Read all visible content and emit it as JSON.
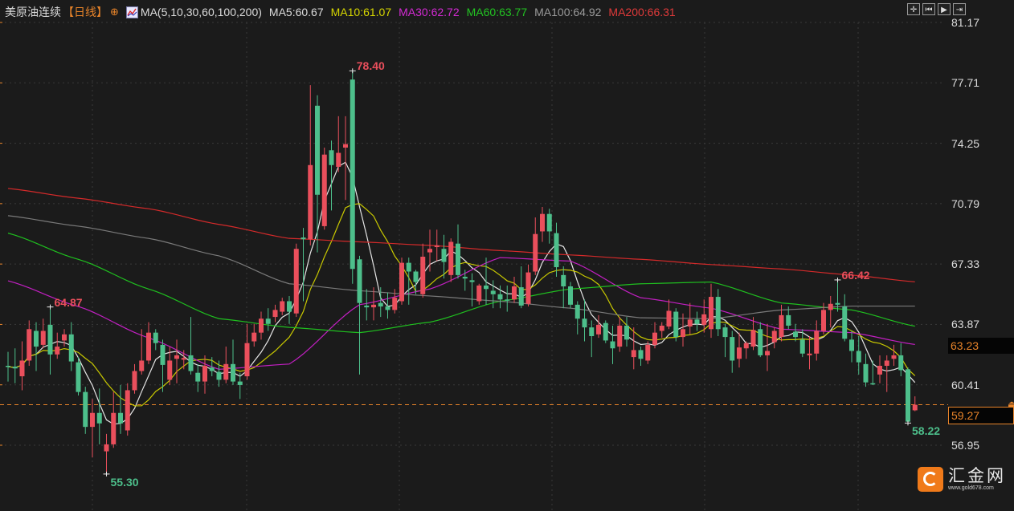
{
  "header": {
    "title": "美原油连续",
    "period": "【日线】",
    "ma_params": "MA(5,10,30,60,100,200)",
    "ma_values": [
      {
        "label": "MA5:60.67",
        "color": "#dcdcdc"
      },
      {
        "label": "MA10:61.07",
        "color": "#d6d600"
      },
      {
        "label": "MA30:62.72",
        "color": "#d42ad4"
      },
      {
        "label": "MA60:63.77",
        "color": "#22c322"
      },
      {
        "label": "MA100:64.92",
        "color": "#9a9a9a"
      },
      {
        "label": "MA200:66.31",
        "color": "#e03a3a"
      }
    ]
  },
  "toolbar": [
    {
      "name": "crosshair-icon",
      "glyph": "✛"
    },
    {
      "name": "step-back-icon",
      "glyph": "⏮"
    },
    {
      "name": "play-icon",
      "glyph": "▶"
    },
    {
      "name": "jump-end-icon",
      "glyph": "⇥"
    }
  ],
  "logo": {
    "name": "汇金网",
    "url": "www.gold678.com"
  },
  "price_tags": {
    "prev": "63.23",
    "current": "59.27"
  },
  "colors": {
    "up": "#ea4f5c",
    "down": "#4dbf8b",
    "background": "#1b1b1b",
    "current_line": "#e8842a"
  },
  "chart_data": {
    "type": "candlestick",
    "title": "美原油连续",
    "ylim": [
      56.95,
      81.17
    ],
    "yticks": [
      "81.17",
      "77.71",
      "74.25",
      "70.79",
      "67.33",
      "63.87",
      "60.41",
      "56.95"
    ],
    "grid": true,
    "current_price": 59.27,
    "reference_price": 63.23,
    "candles_ohlc": [
      [
        61.5,
        62.3,
        60.6,
        61.45
      ],
      [
        61.45,
        62.5,
        60.5,
        61.35
      ],
      [
        60.9,
        62.9,
        60.1,
        61.8
      ],
      [
        61.8,
        64.1,
        61.5,
        63.6
      ],
      [
        63.5,
        64.0,
        61.2,
        62.6
      ],
      [
        62.7,
        64.2,
        62.5,
        63.5
      ],
      [
        63.85,
        64.87,
        61.0,
        62.15
      ],
      [
        62.15,
        63.4,
        61.9,
        62.6
      ],
      [
        62.95,
        63.6,
        62.6,
        63.3
      ],
      [
        63.3,
        64.0,
        61.2,
        61.75
      ],
      [
        61.7,
        62.0,
        59.8,
        60.0
      ],
      [
        60.0,
        60.3,
        57.6,
        58.0
      ],
      [
        58.0,
        59.6,
        56.25,
        58.8
      ],
      [
        58.8,
        60.2,
        57.0,
        58.2
      ],
      [
        56.6,
        57.6,
        55.3,
        57.0
      ],
      [
        57.0,
        60.0,
        56.8,
        58.8
      ],
      [
        58.8,
        60.4,
        57.6,
        58.2
      ],
      [
        57.8,
        60.5,
        57.5,
        60.1
      ],
      [
        60.1,
        61.6,
        59.9,
        61.2
      ],
      [
        61.2,
        63.6,
        61.0,
        61.8
      ],
      [
        61.8,
        64.0,
        61.6,
        63.4
      ],
      [
        63.4,
        63.6,
        62.4,
        62.8
      ],
      [
        62.7,
        63.0,
        60.0,
        61.55
      ],
      [
        60.7,
        62.6,
        60.4,
        61.8
      ],
      [
        61.9,
        63.0,
        60.5,
        62.1
      ],
      [
        61.85,
        62.4,
        61.3,
        61.95
      ],
      [
        62.1,
        64.3,
        61.0,
        61.2
      ],
      [
        61.1,
        61.6,
        60.0,
        60.6
      ],
      [
        60.6,
        62.1,
        59.9,
        61.5
      ],
      [
        61.4,
        62.0,
        60.9,
        61.2
      ],
      [
        61.15,
        61.8,
        60.3,
        60.7
      ],
      [
        60.7,
        62.6,
        60.5,
        61.6
      ],
      [
        61.6,
        63.0,
        60.4,
        60.6
      ],
      [
        60.6,
        61.1,
        59.6,
        60.4
      ],
      [
        60.9,
        63.9,
        60.7,
        62.8
      ],
      [
        62.9,
        63.9,
        62.6,
        63.4
      ],
      [
        63.4,
        64.6,
        63.0,
        64.2
      ],
      [
        64.2,
        64.8,
        63.5,
        63.9
      ],
      [
        64.3,
        65.0,
        64.0,
        64.7
      ],
      [
        64.6,
        65.4,
        64.4,
        65.2
      ],
      [
        65.2,
        65.5,
        63.9,
        64.6
      ],
      [
        64.5,
        68.5,
        64.3,
        68.2
      ],
      [
        68.85,
        69.4,
        65.2,
        68.75
      ],
      [
        68.75,
        77.58,
        68.4,
        73.0
      ],
      [
        76.4,
        77.0,
        68.0,
        71.3
      ],
      [
        69.5,
        74.0,
        69.3,
        73.6
      ],
      [
        73.85,
        74.4,
        70.4,
        73.0
      ],
      [
        72.9,
        75.8,
        72.6,
        73.7
      ],
      [
        74.0,
        75.8,
        71.0,
        74.2
      ],
      [
        77.9,
        78.4,
        66.2,
        67.05
      ],
      [
        67.6,
        67.8,
        61.0,
        65.1
      ],
      [
        64.95,
        65.9,
        64.1,
        64.85
      ],
      [
        64.85,
        66.0,
        64.1,
        65.0
      ],
      [
        65.1,
        66.0,
        64.3,
        64.9
      ],
      [
        64.9,
        65.7,
        64.2,
        64.7
      ],
      [
        64.7,
        65.9,
        64.5,
        65.4
      ],
      [
        65.2,
        67.7,
        65.0,
        67.4
      ],
      [
        67.4,
        67.7,
        65.0,
        66.9
      ],
      [
        66.9,
        67.0,
        65.6,
        66.3
      ],
      [
        65.6,
        68.5,
        65.4,
        67.75
      ],
      [
        68.0,
        69.3,
        66.9,
        68.2
      ],
      [
        68.3,
        69.3,
        67.5,
        68.4
      ],
      [
        68.2,
        69.0,
        66.5,
        67.45
      ],
      [
        66.7,
        68.8,
        66.3,
        68.6
      ],
      [
        68.5,
        69.6,
        66.5,
        66.7
      ],
      [
        66.6,
        67.0,
        65.8,
        66.5
      ],
      [
        66.4,
        66.8,
        64.9,
        66.3
      ],
      [
        65.2,
        66.2,
        65.0,
        66.1
      ],
      [
        66.1,
        67.7,
        65.0,
        65.9
      ],
      [
        65.8,
        66.4,
        64.8,
        65.6
      ],
      [
        65.6,
        66.1,
        64.8,
        65.3
      ],
      [
        65.3,
        66.1,
        64.6,
        65.25
      ],
      [
        65.3,
        66.6,
        65.1,
        66.05
      ],
      [
        66.0,
        67.2,
        64.8,
        64.95
      ],
      [
        65.05,
        67.3,
        64.9,
        66.85
      ],
      [
        66.9,
        70.0,
        66.7,
        69.05
      ],
      [
        69.2,
        70.6,
        68.6,
        70.2
      ],
      [
        70.2,
        70.5,
        68.5,
        69.2
      ],
      [
        69.1,
        69.7,
        66.6,
        67.15
      ],
      [
        66.7,
        67.2,
        64.8,
        66.05
      ],
      [
        66.05,
        66.3,
        64.8,
        65.0
      ],
      [
        65.0,
        65.2,
        63.3,
        64.2
      ],
      [
        64.2,
        65.3,
        62.9,
        63.7
      ],
      [
        63.7,
        64.1,
        62.0,
        63.2
      ],
      [
        63.3,
        64.4,
        63.1,
        63.85
      ],
      [
        63.95,
        64.1,
        62.8,
        62.95
      ],
      [
        62.9,
        63.8,
        61.6,
        62.5
      ],
      [
        62.6,
        64.3,
        62.3,
        63.8
      ],
      [
        63.8,
        64.3,
        62.6,
        63.0
      ],
      [
        62.0,
        63.7,
        61.3,
        62.4
      ],
      [
        62.4,
        62.6,
        61.5,
        61.9
      ],
      [
        61.8,
        62.9,
        61.6,
        62.7
      ],
      [
        62.7,
        64.0,
        62.5,
        63.4
      ],
      [
        63.5,
        64.0,
        63.1,
        63.8
      ],
      [
        63.75,
        65.3,
        63.6,
        64.65
      ],
      [
        64.6,
        64.8,
        62.9,
        63.15
      ],
      [
        63.15,
        64.5,
        62.6,
        63.6
      ],
      [
        63.75,
        65.1,
        63.3,
        64.15
      ],
      [
        64.15,
        64.6,
        63.5,
        63.9
      ],
      [
        63.85,
        65.3,
        63.4,
        64.45
      ],
      [
        63.6,
        66.2,
        63.1,
        65.45
      ],
      [
        65.45,
        65.9,
        63.2,
        63.6
      ],
      [
        63.7,
        63.9,
        62.0,
        63.15
      ],
      [
        63.15,
        63.5,
        61.1,
        61.8
      ],
      [
        61.9,
        63.4,
        61.4,
        62.55
      ],
      [
        62.5,
        62.9,
        61.9,
        62.8
      ],
      [
        62.6,
        64.3,
        62.4,
        63.55
      ],
      [
        63.6,
        64.0,
        62.0,
        62.1
      ],
      [
        62.1,
        63.9,
        61.2,
        62.35
      ],
      [
        62.85,
        63.7,
        62.5,
        63.5
      ],
      [
        63.15,
        65.0,
        62.9,
        64.4
      ],
      [
        64.4,
        64.9,
        63.6,
        63.8
      ],
      [
        63.45,
        63.9,
        62.9,
        63.15
      ],
      [
        63.0,
        63.6,
        62.0,
        62.2
      ],
      [
        62.1,
        63.2,
        61.3,
        62.2
      ],
      [
        62.2,
        64.1,
        61.8,
        63.5
      ],
      [
        63.5,
        65.1,
        63.3,
        64.7
      ],
      [
        64.7,
        65.5,
        63.7,
        65.05
      ],
      [
        65.1,
        66.42,
        64.6,
        65.0
      ],
      [
        64.9,
        65.6,
        62.9,
        63.05
      ],
      [
        63.0,
        63.5,
        61.7,
        62.35
      ],
      [
        62.35,
        63.2,
        61.0,
        61.7
      ],
      [
        61.6,
        62.2,
        60.3,
        60.55
      ],
      [
        60.5,
        61.8,
        60.4,
        60.45
      ],
      [
        61.0,
        62.1,
        60.5,
        61.5
      ],
      [
        61.5,
        62.1,
        60.0,
        61.8
      ],
      [
        61.9,
        62.7,
        61.5,
        62.1
      ],
      [
        62.1,
        62.8,
        60.9,
        61.25
      ],
      [
        61.3,
        61.4,
        58.22,
        58.3
      ],
      [
        58.95,
        59.75,
        58.9,
        59.27
      ]
    ],
    "moving_averages": [
      {
        "name": "MA5",
        "period": 5,
        "color": "#e6e6e6"
      },
      {
        "name": "MA10",
        "period": 10,
        "color": "#c8c800"
      },
      {
        "name": "MA30",
        "color": "#c21fc2",
        "anchors": [
          [
            0,
            66.37
          ],
          [
            10,
            64.9
          ],
          [
            20,
            63.1
          ],
          [
            30,
            61.3
          ],
          [
            40,
            61.6
          ],
          [
            50,
            65.0
          ],
          [
            60,
            65.9
          ],
          [
            70,
            67.7
          ],
          [
            80,
            67.5
          ],
          [
            90,
            65.4
          ],
          [
            100,
            64.8
          ],
          [
            110,
            63.6
          ],
          [
            120,
            63.4
          ],
          [
            129,
            62.72
          ]
        ]
      },
      {
        "name": "MA60",
        "color": "#1fbf1f",
        "anchors": [
          [
            0,
            69.1
          ],
          [
            10,
            67.6
          ],
          [
            20,
            65.9
          ],
          [
            30,
            64.2
          ],
          [
            40,
            63.7
          ],
          [
            50,
            63.4
          ],
          [
            60,
            64.0
          ],
          [
            70,
            65.2
          ],
          [
            80,
            65.9
          ],
          [
            90,
            66.2
          ],
          [
            100,
            66.3
          ],
          [
            110,
            65.1
          ],
          [
            120,
            64.7
          ],
          [
            129,
            63.77
          ]
        ]
      },
      {
        "name": "MA100",
        "color": "#7a7a7a",
        "anchors": [
          [
            0,
            70.1
          ],
          [
            10,
            69.5
          ],
          [
            20,
            68.8
          ],
          [
            30,
            67.8
          ],
          [
            40,
            66.2
          ],
          [
            50,
            65.8
          ],
          [
            60,
            65.5
          ],
          [
            70,
            65.2
          ],
          [
            80,
            64.8
          ],
          [
            90,
            64.25
          ],
          [
            100,
            64.2
          ],
          [
            110,
            64.7
          ],
          [
            120,
            64.92
          ],
          [
            129,
            64.92
          ]
        ]
      },
      {
        "name": "MA200",
        "color": "#d42a2a",
        "anchors": [
          [
            0,
            71.66
          ],
          [
            10,
            71.1
          ],
          [
            20,
            70.5
          ],
          [
            30,
            69.6
          ],
          [
            40,
            68.8
          ],
          [
            50,
            68.6
          ],
          [
            60,
            68.4
          ],
          [
            70,
            68.1
          ],
          [
            80,
            67.85
          ],
          [
            90,
            67.6
          ],
          [
            100,
            67.3
          ],
          [
            110,
            67.05
          ],
          [
            120,
            66.7
          ],
          [
            129,
            66.31
          ]
        ]
      }
    ],
    "annotations": [
      {
        "text": "78.40",
        "index": 49,
        "kind": "high",
        "color": "#ea4f5c"
      },
      {
        "text": "64.87",
        "index": 6,
        "kind": "high",
        "color": "#ea4f5c"
      },
      {
        "text": "55.30",
        "index": 14,
        "kind": "low",
        "color": "#4dbf8b"
      },
      {
        "text": "66.42",
        "index": 118,
        "kind": "high",
        "color": "#ea4f5c"
      },
      {
        "text": "58.22",
        "index": 128,
        "kind": "low",
        "color": "#4dbf8b"
      }
    ]
  }
}
